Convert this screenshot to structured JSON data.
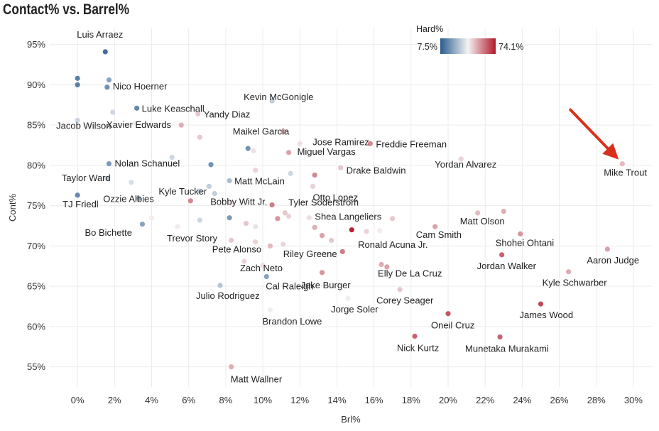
{
  "chart_data": {
    "type": "scatter",
    "title": "Contact% vs. Barrel%",
    "xlabel": "Brl%",
    "ylabel": "Cont%",
    "xlim": [
      -1.5,
      31.0
    ],
    "ylim": [
      52.5,
      97.0
    ],
    "x_ticks": [
      0,
      2,
      4,
      6,
      8,
      10,
      12,
      14,
      16,
      18,
      20,
      22,
      24,
      26,
      28,
      30
    ],
    "x_tick_labels": [
      "0%",
      "2%",
      "4%",
      "6%",
      "8%",
      "10%",
      "12%",
      "14%",
      "16%",
      "18%",
      "20%",
      "22%",
      "24%",
      "26%",
      "28%",
      "30%"
    ],
    "y_ticks": [
      55,
      60,
      65,
      70,
      75,
      80,
      85,
      90,
      95
    ],
    "y_tick_labels": [
      "55%",
      "60%",
      "65%",
      "70%",
      "75%",
      "80%",
      "85%",
      "90%",
      "95%"
    ],
    "grid": true,
    "color_scale": {
      "title": "Hard%",
      "min_label": "7.5%",
      "max_label": "74.1%",
      "min": 7.5,
      "max": 74.1,
      "low_color": "#2b5c8f",
      "mid_color": "#f3f3f3",
      "high_color": "#b2182b"
    },
    "annotation": {
      "type": "arrow",
      "target": "Mike Trout",
      "color": "#d9301c"
    },
    "points": [
      {
        "name": "Luis Arraez",
        "brl": 1.5,
        "cont": 94.1,
        "hard": 10,
        "labeled": true
      },
      {
        "name": "",
        "brl": 0.0,
        "cont": 90.8,
        "hard": 14,
        "labeled": false
      },
      {
        "name": "",
        "brl": 0.0,
        "cont": 90.0,
        "hard": 14,
        "labeled": false
      },
      {
        "name": "",
        "brl": 1.7,
        "cont": 90.6,
        "hard": 22,
        "labeled": false
      },
      {
        "name": "Nico Hoerner",
        "brl": 1.6,
        "cont": 89.7,
        "hard": 18,
        "labeled": true
      },
      {
        "name": "Luke Keaschall",
        "brl": 3.2,
        "cont": 87.1,
        "hard": 16,
        "labeled": true
      },
      {
        "name": "",
        "brl": 1.9,
        "cont": 86.6,
        "hard": 34,
        "labeled": false
      },
      {
        "name": "Jacob Wilson",
        "brl": 0.0,
        "cont": 85.6,
        "hard": 34,
        "labeled": true
      },
      {
        "name": "Yandy Diaz",
        "brl": 6.5,
        "cont": 86.4,
        "hard": 48,
        "labeled": true
      },
      {
        "name": "Kevin McGonigle",
        "brl": 10.5,
        "cont": 88.0,
        "hard": 32,
        "labeled": true
      },
      {
        "name": "Xavier Edwards",
        "brl": 3.1,
        "cont": 85.2,
        "hard": 42,
        "labeled": true
      },
      {
        "name": "",
        "brl": 5.6,
        "cont": 85.0,
        "hard": 52,
        "labeled": false
      },
      {
        "name": "",
        "brl": 6.6,
        "cont": 83.5,
        "hard": 48,
        "labeled": false
      },
      {
        "name": "Maikel Garcia",
        "brl": 11.1,
        "cont": 84.2,
        "hard": 52,
        "labeled": true
      },
      {
        "name": "Jose Ramirez",
        "brl": 12.0,
        "cont": 82.7,
        "hard": 44,
        "labeled": true
      },
      {
        "name": "Freddie Freeman",
        "brl": 15.8,
        "cont": 82.7,
        "hard": 58,
        "labeled": true
      },
      {
        "name": "",
        "brl": 9.2,
        "cont": 82.1,
        "hard": 18,
        "labeled": false
      },
      {
        "name": "",
        "brl": 9.5,
        "cont": 81.8,
        "hard": 44,
        "labeled": false
      },
      {
        "name": "Miguel Vargas",
        "brl": 11.4,
        "cont": 81.6,
        "hard": 54,
        "labeled": true
      },
      {
        "name": "Nolan Schanuel",
        "brl": 1.7,
        "cont": 80.2,
        "hard": 20,
        "labeled": true
      },
      {
        "name": "",
        "brl": 5.1,
        "cont": 81.0,
        "hard": 34,
        "labeled": false
      },
      {
        "name": "",
        "brl": 7.2,
        "cont": 80.1,
        "hard": 18,
        "labeled": false
      },
      {
        "name": "Yordan Alvarez",
        "brl": 20.7,
        "cont": 80.8,
        "hard": 46,
        "labeled": true
      },
      {
        "name": "Mike Trout",
        "brl": 29.4,
        "cont": 80.2,
        "hard": 50,
        "labeled": true
      },
      {
        "name": "Drake Baldwin",
        "brl": 14.2,
        "cont": 79.7,
        "hard": 48,
        "labeled": true
      },
      {
        "name": "",
        "brl": 9.6,
        "cont": 79.4,
        "hard": 46,
        "labeled": false
      },
      {
        "name": "",
        "brl": 11.5,
        "cont": 79.0,
        "hard": 34,
        "labeled": false
      },
      {
        "name": "",
        "brl": 12.8,
        "cont": 78.8,
        "hard": 58,
        "labeled": false
      },
      {
        "name": "Taylor Ward",
        "brl": 1.6,
        "cont": 78.4,
        "hard": 32,
        "labeled": true
      },
      {
        "name": "",
        "brl": 2.9,
        "cont": 77.9,
        "hard": 36,
        "labeled": false
      },
      {
        "name": "Matt McLain",
        "brl": 8.2,
        "cont": 78.1,
        "hard": 28,
        "labeled": true
      },
      {
        "name": "Otto Lopez",
        "brl": 12.7,
        "cont": 77.4,
        "hard": 46,
        "labeled": true
      },
      {
        "name": "",
        "brl": 7.1,
        "cont": 77.4,
        "hard": 32,
        "labeled": false
      },
      {
        "name": "Kyle Tucker",
        "brl": 6.6,
        "cont": 76.8,
        "hard": 32,
        "labeled": true
      },
      {
        "name": "Bobby Witt Jr.",
        "brl": 7.4,
        "cont": 76.5,
        "hard": 32,
        "labeled": true
      },
      {
        "name": "TJ Friedl",
        "brl": 0.0,
        "cont": 76.3,
        "hard": 16,
        "labeled": true
      },
      {
        "name": "Ozzie Albies",
        "brl": 3.3,
        "cont": 75.9,
        "hard": 26,
        "labeled": true
      },
      {
        "name": "",
        "brl": 6.1,
        "cont": 75.6,
        "hard": 58,
        "labeled": false
      },
      {
        "name": "",
        "brl": 8.3,
        "cont": 75.4,
        "hard": 44,
        "labeled": false
      },
      {
        "name": "Tyler Soderstrom",
        "brl": 10.5,
        "cont": 75.1,
        "hard": 60,
        "labeled": true
      },
      {
        "name": "",
        "brl": 11.2,
        "cont": 74.1,
        "hard": 48,
        "labeled": false
      },
      {
        "name": "",
        "brl": 10.8,
        "cont": 73.4,
        "hard": 56,
        "labeled": false
      },
      {
        "name": "",
        "brl": 11.4,
        "cont": 73.7,
        "hard": 46,
        "labeled": false
      },
      {
        "name": "Shea Langeliers",
        "brl": 12.5,
        "cont": 73.5,
        "hard": 44,
        "labeled": true
      },
      {
        "name": "",
        "brl": 4.0,
        "cont": 73.5,
        "hard": 42,
        "labeled": false
      },
      {
        "name": "",
        "brl": 6.6,
        "cont": 73.2,
        "hard": 34,
        "labeled": false
      },
      {
        "name": "",
        "brl": 8.2,
        "cont": 73.5,
        "hard": 20,
        "labeled": false
      },
      {
        "name": "Bo Bichette",
        "brl": 3.5,
        "cont": 72.7,
        "hard": 22,
        "labeled": true
      },
      {
        "name": "",
        "brl": 9.1,
        "cont": 72.8,
        "hard": 48,
        "labeled": false
      },
      {
        "name": "",
        "brl": 9.6,
        "cont": 72.4,
        "hard": 44,
        "labeled": false
      },
      {
        "name": "",
        "brl": 12.8,
        "cont": 72.3,
        "hard": 52,
        "labeled": false
      },
      {
        "name": "",
        "brl": 14.8,
        "cont": 72.0,
        "hard": 74.1,
        "labeled": true
      },
      {
        "name": "Trevor Story",
        "brl": 5.4,
        "cont": 72.4,
        "hard": 42,
        "labeled": true
      },
      {
        "name": "",
        "brl": 17.0,
        "cont": 73.4,
        "hard": 48,
        "labeled": false
      },
      {
        "name": "Cam Smith",
        "brl": 19.3,
        "cont": 72.4,
        "hard": 54,
        "labeled": true
      },
      {
        "name": "Matt Olson",
        "brl": 21.6,
        "cont": 74.1,
        "hard": 50,
        "labeled": true
      },
      {
        "name": "",
        "brl": 23.0,
        "cont": 74.3,
        "hard": 52,
        "labeled": false
      },
      {
        "name": "Ronald Acuna Jr.",
        "brl": 15.6,
        "cont": 71.8,
        "hard": 46,
        "labeled": true
      },
      {
        "name": "",
        "brl": 13.2,
        "cont": 71.3,
        "hard": 54,
        "labeled": false
      },
      {
        "name": "",
        "brl": 13.7,
        "cont": 70.7,
        "hard": 48,
        "labeled": false
      },
      {
        "name": "",
        "brl": 16.3,
        "cont": 71.9,
        "hard": 42,
        "labeled": false
      },
      {
        "name": "Pete Alonso",
        "brl": 8.3,
        "cont": 70.7,
        "hard": 48,
        "labeled": true
      },
      {
        "name": "",
        "brl": 9.6,
        "cont": 70.5,
        "hard": 46,
        "labeled": false
      },
      {
        "name": "",
        "brl": 10.4,
        "cont": 70.0,
        "hard": 50,
        "labeled": false
      },
      {
        "name": "Riley Greene",
        "brl": 11.1,
        "cont": 70.2,
        "hard": 46,
        "labeled": true
      },
      {
        "name": "",
        "brl": 14.3,
        "cont": 69.3,
        "hard": 60,
        "labeled": false
      },
      {
        "name": "Shohei Ohtani",
        "brl": 23.9,
        "cont": 71.5,
        "hard": 56,
        "labeled": true
      },
      {
        "name": "Jordan Walker",
        "brl": 22.9,
        "cont": 68.9,
        "hard": 64,
        "labeled": true
      },
      {
        "name": "Aaron Judge",
        "brl": 28.6,
        "cont": 69.6,
        "hard": 54,
        "labeled": true
      },
      {
        "name": "Zach Neto",
        "brl": 9.0,
        "cont": 68.1,
        "hard": 46,
        "labeled": true
      },
      {
        "name": "",
        "brl": 10.0,
        "cont": 67.6,
        "hard": 44,
        "labeled": false
      },
      {
        "name": "Elly De La Cruz",
        "brl": 16.4,
        "cont": 67.7,
        "hard": 52,
        "labeled": true
      },
      {
        "name": "",
        "brl": 16.7,
        "cont": 67.4,
        "hard": 54,
        "labeled": false
      },
      {
        "name": "Kyle Schwarber",
        "brl": 26.5,
        "cont": 66.8,
        "hard": 52,
        "labeled": true
      },
      {
        "name": "Jake Burger",
        "brl": 13.2,
        "cont": 66.7,
        "hard": 56,
        "labeled": true
      },
      {
        "name": "Cal Raleigh",
        "brl": 10.2,
        "cont": 66.2,
        "hard": 22,
        "labeled": true
      },
      {
        "name": "Julio Rodriguez",
        "brl": 7.7,
        "cont": 65.1,
        "hard": 30,
        "labeled": true
      },
      {
        "name": "Corey Seager",
        "brl": 17.4,
        "cont": 64.6,
        "hard": 48,
        "labeled": true
      },
      {
        "name": "Jorge Soler",
        "brl": 14.6,
        "cont": 63.5,
        "hard": 42,
        "labeled": true
      },
      {
        "name": "James Wood",
        "brl": 25.0,
        "cont": 62.8,
        "hard": 68,
        "labeled": true
      },
      {
        "name": "Brandon Lowe",
        "brl": 10.4,
        "cont": 62.1,
        "hard": 42,
        "labeled": true
      },
      {
        "name": "Oneil Cruz",
        "brl": 20.0,
        "cont": 61.6,
        "hard": 66,
        "labeled": true
      },
      {
        "name": "Nick Kurtz",
        "brl": 18.2,
        "cont": 58.8,
        "hard": 64,
        "labeled": true
      },
      {
        "name": "Munetaka Murakami",
        "brl": 22.8,
        "cont": 58.7,
        "hard": 64,
        "labeled": true
      },
      {
        "name": "Matt Wallner",
        "brl": 8.3,
        "cont": 55.0,
        "hard": 52,
        "labeled": true
      }
    ]
  }
}
